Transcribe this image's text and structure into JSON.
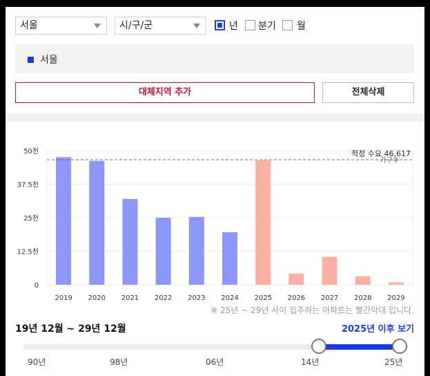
{
  "filters": {
    "region_select": "서울",
    "district_select": "시/구/군",
    "period_options": [
      {
        "label": "년",
        "checked": true
      },
      {
        "label": "분기",
        "checked": false
      },
      {
        "label": "월",
        "checked": false
      }
    ]
  },
  "selected_region": "서울",
  "buttons": {
    "add_alt_region": "대체지역 추가",
    "delete_all": "전체삭제"
  },
  "chart_data": {
    "type": "bar",
    "categories": [
      "2019",
      "2020",
      "2021",
      "2022",
      "2023",
      "2024",
      "2025",
      "2026",
      "2027",
      "2028",
      "2029"
    ],
    "values": [
      47600,
      46200,
      32000,
      25000,
      25300,
      19600,
      46400,
      4200,
      10400,
      3200,
      900
    ],
    "bar_colors": [
      "#8b98fa",
      "#8b98fa",
      "#8b98fa",
      "#8b98fa",
      "#8b98fa",
      "#8b98fa",
      "#ffb0a2",
      "#ffb0a2",
      "#ffb0a2",
      "#ffb0a2",
      "#ffb0a2"
    ],
    "ylim": [
      0,
      50000
    ],
    "y_ticks": [
      0,
      12500,
      25000,
      37500,
      50000
    ],
    "y_tick_labels": [
      "0",
      "12.5천",
      "25천",
      "37.5천",
      "50천"
    ],
    "reference_line": {
      "value": 46617,
      "label": "적정 수요 46,617",
      "color": "#e23b3b",
      "sublabel": "가구수"
    },
    "grid": true
  },
  "note": "※ 25년 ~ 29년 사이 입주하는 아파트는 빨간막대 입니다.",
  "slider": {
    "range_text": "19년 12월 ~ 29년 12월",
    "after_link": "2025년 이후 보기",
    "ticks": [
      "90년",
      "98년",
      "06년",
      "14년",
      "25년"
    ]
  }
}
